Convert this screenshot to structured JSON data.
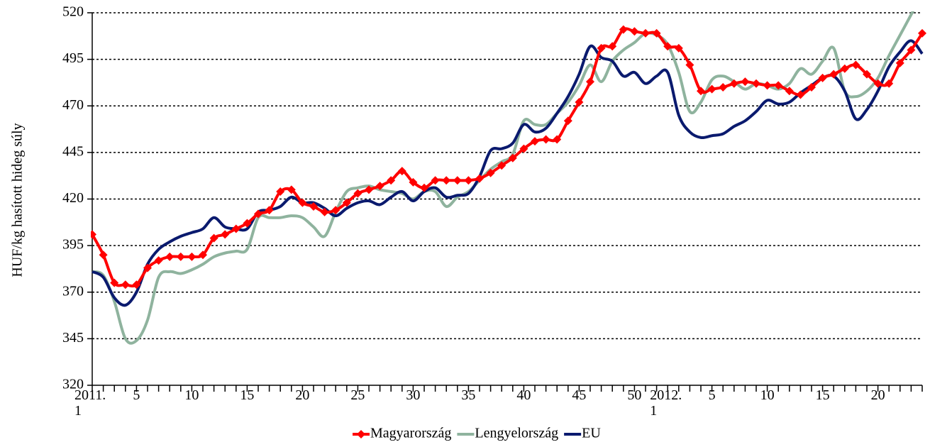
{
  "chart_data": {
    "type": "line",
    "y_label": "HUF/kg hasított hideg súly",
    "categories": [
      "2011. 1",
      null,
      null,
      null,
      "5",
      null,
      null,
      null,
      null,
      "10",
      null,
      null,
      null,
      null,
      "15",
      null,
      null,
      null,
      null,
      "20",
      null,
      null,
      null,
      null,
      "25",
      null,
      null,
      null,
      null,
      "30",
      null,
      null,
      null,
      null,
      "35",
      null,
      null,
      null,
      null,
      "40",
      null,
      null,
      null,
      null,
      "45",
      null,
      null,
      null,
      null,
      "50",
      null,
      null,
      "2012. 1",
      null,
      null,
      null,
      "5",
      null,
      null,
      null,
      null,
      "10",
      null,
      null,
      null,
      null,
      "15",
      null,
      null,
      null,
      null,
      "20",
      null,
      null,
      null,
      null
    ],
    "series": [
      {
        "name": "Magyarország",
        "color": "#ff0000",
        "marker": "diamond",
        "values": [
          401,
          390,
          375,
          374,
          374,
          383,
          387,
          389,
          389,
          389,
          390,
          399,
          401,
          404,
          407,
          412,
          414,
          424,
          425,
          418,
          416,
          413,
          414,
          418,
          423,
          425,
          427,
          430,
          435,
          429,
          426,
          430,
          430,
          430,
          430,
          431,
          434,
          438,
          442,
          447,
          451,
          452,
          452,
          462,
          472,
          483,
          501,
          502,
          511,
          510,
          509,
          509,
          502,
          501,
          492,
          478,
          479,
          480,
          482,
          483,
          482,
          481,
          481,
          478,
          476,
          480,
          485,
          487,
          490,
          492,
          487,
          482,
          482,
          493,
          500,
          509
        ]
      },
      {
        "name": "Lengyelország",
        "color": "#8fb39e",
        "values": [
          381,
          379,
          365,
          345,
          344,
          355,
          378,
          381,
          380,
          382,
          385,
          389,
          391,
          392,
          393,
          410,
          410,
          410,
          411,
          410,
          405,
          400,
          413,
          424,
          426,
          427,
          425,
          424,
          423,
          420,
          424,
          424,
          416,
          421,
          424,
          430,
          436,
          440,
          444,
          462,
          460,
          460,
          466,
          472,
          481,
          492,
          483,
          494,
          500,
          504,
          509,
          508,
          503,
          488,
          467,
          472,
          484,
          486,
          483,
          479,
          482,
          481,
          479,
          482,
          490,
          487,
          494,
          501,
          478,
          475,
          478,
          485,
          497,
          508,
          519,
          530
        ]
      },
      {
        "name": "EU",
        "color": "#0a1a6e",
        "values": [
          381,
          378,
          367,
          363,
          370,
          385,
          393,
          397,
          400,
          402,
          404,
          410,
          405,
          404,
          404,
          413,
          414,
          416,
          421,
          418,
          418,
          415,
          411,
          415,
          418,
          419,
          417,
          421,
          424,
          419,
          424,
          426,
          421,
          422,
          423,
          432,
          446,
          447,
          450,
          460,
          456,
          458,
          466,
          475,
          487,
          502,
          496,
          494,
          486,
          488,
          482,
          486,
          488,
          465,
          456,
          453,
          454,
          455,
          459,
          462,
          467,
          473,
          471,
          472,
          477,
          481,
          485,
          486,
          478,
          463,
          468,
          478,
          491,
          499,
          505,
          498
        ]
      }
    ],
    "ylim": [
      320,
      520
    ],
    "yticks": [
      320,
      345,
      370,
      395,
      420,
      445,
      470,
      495,
      520
    ],
    "grid": true,
    "legend": "bottom"
  }
}
